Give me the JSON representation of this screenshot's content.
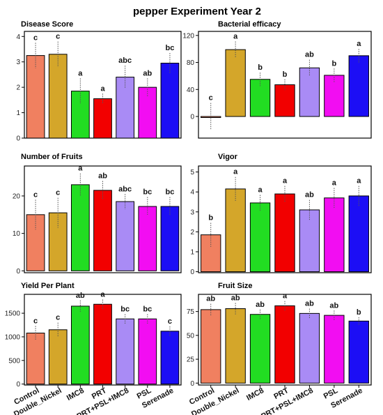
{
  "title": "pepper Experiment Year 2",
  "categories": [
    "Control",
    "Double_Nickel",
    "IMC8",
    "PRT",
    "PRT+PSL+IMC8",
    "PSL",
    "Serenade"
  ],
  "colors": [
    "#F08060",
    "#D4A62A",
    "#22DD22",
    "#F20000",
    "#A98BF5",
    "#F20DF2",
    "#1C0EF5"
  ],
  "chart_data": [
    {
      "type": "bar",
      "title": "Disease Score",
      "categories": [
        "Control",
        "Double_Nickel",
        "IMC8",
        "PRT",
        "PRT+PSL+IMC8",
        "PSL",
        "Serenade"
      ],
      "values": [
        3.25,
        3.3,
        1.85,
        1.55,
        2.4,
        2.0,
        2.95
      ],
      "errors": [
        0.5,
        0.5,
        0.5,
        0.2,
        0.45,
        0.35,
        0.4
      ],
      "sig": [
        "c",
        "c",
        "a",
        "a",
        "abc",
        "ab",
        "bc"
      ],
      "ylim": [
        0,
        4.2
      ],
      "yticks": [
        0,
        1,
        2,
        3,
        4
      ]
    },
    {
      "type": "bar",
      "title": "Bacterial efficacy",
      "categories": [
        "Control",
        "Double_Nickel",
        "IMC8",
        "PRT",
        "PRT+PSL+IMC8",
        "PSL",
        "Serenade"
      ],
      "values": [
        0,
        99,
        55,
        47,
        72,
        61,
        90
      ],
      "errors": [
        20,
        12,
        10,
        8,
        12,
        10,
        10
      ],
      "sig": [
        "c",
        "a",
        "b",
        "b",
        "ab",
        "b",
        "a"
      ],
      "ylim": [
        -32,
        126
      ],
      "yticks": [
        0,
        40,
        80,
        120
      ]
    },
    {
      "type": "bar",
      "title": "Number of Fruits",
      "categories": [
        "Control",
        "Double_Nickel",
        "IMC8",
        "PRT",
        "PRT+PSL+IMC8",
        "PSL",
        "Serenade"
      ],
      "values": [
        15,
        15.5,
        23,
        21.5,
        18.5,
        17.2,
        17.2
      ],
      "errors": [
        4,
        4,
        3,
        2.5,
        2,
        2.5,
        2.5
      ],
      "sig": [
        "c",
        "c",
        "a",
        "ab",
        "abc",
        "bc",
        "bc"
      ],
      "ylim": [
        -0.5,
        28
      ],
      "yticks": [
        0,
        10,
        20
      ]
    },
    {
      "type": "bar",
      "title": "Vigor",
      "categories": [
        "Control",
        "Double_Nickel",
        "IMC8",
        "PRT",
        "PRT+PSL+IMC8",
        "PSL",
        "Serenade"
      ],
      "values": [
        1.85,
        4.15,
        3.45,
        3.9,
        3.1,
        3.7,
        3.8
      ],
      "errors": [
        0.6,
        0.6,
        0.4,
        0.4,
        0.5,
        0.5,
        0.5
      ],
      "sig": [
        "b",
        "a",
        "a",
        "a",
        "ab",
        "a",
        "a"
      ],
      "ylim": [
        -0.05,
        5.3
      ],
      "yticks": [
        0,
        1,
        2,
        3,
        4,
        5
      ]
    },
    {
      "type": "bar",
      "title": "Yield Per Plant",
      "categories": [
        "Control",
        "Double_Nickel",
        "IMC8",
        "PRT",
        "PRT+PSL+IMC8",
        "PSL",
        "Serenade"
      ],
      "values": [
        1080,
        1150,
        1650,
        1690,
        1380,
        1380,
        1120
      ],
      "errors": [
        150,
        150,
        120,
        100,
        100,
        100,
        100
      ],
      "sig": [
        "c",
        "c",
        "ab",
        "a",
        "bc",
        "bc",
        "c"
      ],
      "ylim": [
        -20,
        1900
      ],
      "yticks": [
        0,
        500,
        1000,
        1500
      ]
    },
    {
      "type": "bar",
      "title": "Fruit Size",
      "categories": [
        "Control",
        "Double_Nickel",
        "IMC8",
        "PRT",
        "PRT+PSL+IMC8",
        "PSL",
        "Serenade"
      ],
      "values": [
        77,
        78,
        72,
        81,
        73,
        71,
        65
      ],
      "errors": [
        6,
        6,
        5,
        5,
        5,
        5,
        4
      ],
      "sig": [
        "ab",
        "ab",
        "ab",
        "a",
        "ab",
        "ab",
        "b"
      ],
      "ylim": [
        -2,
        93
      ],
      "yticks": [
        0,
        25,
        50,
        75
      ]
    }
  ]
}
